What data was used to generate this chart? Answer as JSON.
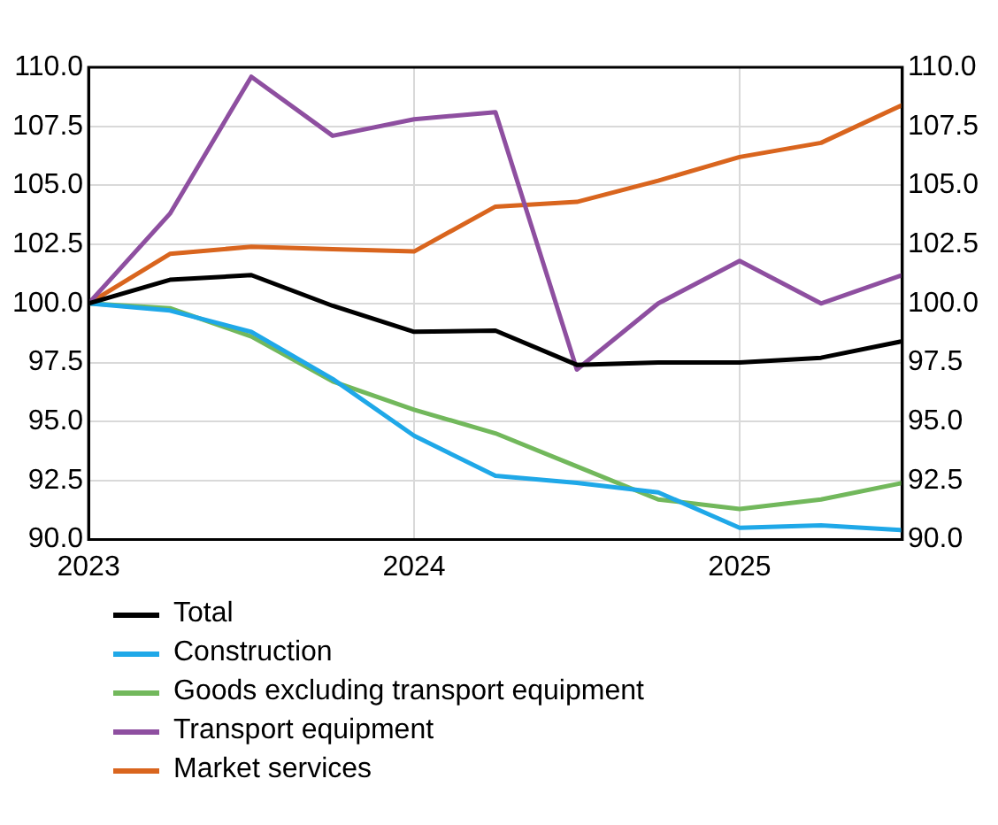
{
  "chart_data": {
    "type": "line",
    "x": [
      2023,
      2023.25,
      2023.5,
      2023.75,
      2024,
      2024.25,
      2024.5,
      2024.75,
      2025,
      2025.25,
      2025.5
    ],
    "series": [
      {
        "name": "Total",
        "color": "#000000",
        "values": [
          100,
          101.0,
          101.2,
          99.9,
          98.8,
          98.85,
          97.4,
          97.5,
          97.5,
          97.7,
          98.4
        ]
      },
      {
        "name": "Construction",
        "color": "#1fa8e8",
        "values": [
          100,
          99.7,
          98.8,
          96.8,
          94.4,
          92.7,
          92.4,
          92.0,
          90.5,
          90.6,
          90.4
        ]
      },
      {
        "name": "Goods excluding transport equipment",
        "color": "#72b85c",
        "values": [
          100,
          99.8,
          98.6,
          96.7,
          95.5,
          94.5,
          93.1,
          91.7,
          91.3,
          91.7,
          92.4
        ]
      },
      {
        "name": "Transport equipment",
        "color": "#8e4fa0",
        "values": [
          100,
          103.8,
          109.6,
          107.1,
          107.8,
          108.1,
          97.2,
          100.0,
          101.8,
          100.0,
          101.2
        ]
      },
      {
        "name": "Market services",
        "color": "#d9651e",
        "values": [
          100,
          102.1,
          102.4,
          102.3,
          102.2,
          104.1,
          104.3,
          105.2,
          106.2,
          106.8,
          108.4
        ]
      }
    ],
    "xlim": [
      2023,
      2025.5
    ],
    "xticks": [
      2023,
      2024,
      2025
    ],
    "ylim": [
      90,
      110
    ],
    "yticks": [
      {
        "value": 90,
        "label": "90.0"
      },
      {
        "value": 92.5,
        "label": "92.5"
      },
      {
        "value": 95,
        "label": "95.0"
      },
      {
        "value": 97.5,
        "label": "97.5"
      },
      {
        "value": 100,
        "label": "100.0"
      },
      {
        "value": 102.5,
        "label": "102.5"
      },
      {
        "value": 105,
        "label": "105.0"
      },
      {
        "value": 107.5,
        "label": "107.5"
      },
      {
        "value": 110,
        "label": "110.0"
      }
    ],
    "y2lim": [
      90,
      110
    ],
    "y2ticks": [
      {
        "value": 90,
        "label": "90.0"
      },
      {
        "value": 92.5,
        "label": "92.5"
      },
      {
        "value": 95,
        "label": "95.0"
      },
      {
        "value": 97.5,
        "label": "97.5"
      },
      {
        "value": 100,
        "label": "100.0"
      },
      {
        "value": 102.5,
        "label": "102.5"
      },
      {
        "value": 105,
        "label": "105.0"
      },
      {
        "value": 107.5,
        "label": "107.5"
      },
      {
        "value": 110,
        "label": "110.0"
      }
    ],
    "grid": true,
    "legend": "bottom",
    "marker": "none",
    "line_style": "solid"
  }
}
